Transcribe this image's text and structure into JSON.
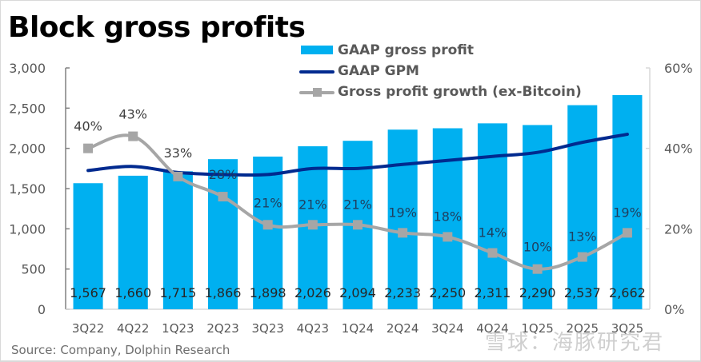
{
  "chart_data": {
    "type": "bar",
    "title": "Block gross profits",
    "source": "Source: Company, Dolphin Research",
    "categories": [
      "3Q22",
      "4Q22",
      "1Q23",
      "2Q23",
      "3Q23",
      "4Q23",
      "1Q24",
      "2Q24",
      "3Q24",
      "4Q24",
      "1Q25",
      "2Q25",
      "3Q25"
    ],
    "series": [
      {
        "name": "GAAP gross profit",
        "type": "bar",
        "axis": "left",
        "color": "#00b0f0",
        "values": [
          1567,
          1660,
          1715,
          1866,
          1898,
          2026,
          2094,
          2233,
          2250,
          2311,
          2290,
          2537,
          2662
        ],
        "labels": [
          "1,567",
          "1,660",
          "1,715",
          "1,866",
          "1,898",
          "2,026",
          "2,094",
          "2,233",
          "2,250",
          "2,311",
          "2,290",
          "2,537",
          "2,662"
        ]
      },
      {
        "name": "GAAP GPM",
        "type": "line",
        "axis": "right",
        "color": "#002a8f",
        "values": [
          34.5,
          35.5,
          34.0,
          33.5,
          33.5,
          35.0,
          35.0,
          36.0,
          37.0,
          38.0,
          39.0,
          41.5,
          43.5
        ]
      },
      {
        "name": "Gross profit growth  (ex-Bitcoin)",
        "type": "line",
        "axis": "right",
        "color": "#a6a6a6",
        "marker": "square",
        "values": [
          40,
          43,
          33,
          28,
          21,
          21,
          21,
          19,
          18,
          14,
          10,
          13,
          19
        ],
        "labels": [
          "40%",
          "43%",
          "33%",
          "28%",
          "21%",
          "21%",
          "21%",
          "19%",
          "18%",
          "14%",
          "10%",
          "13%",
          "19%"
        ]
      }
    ],
    "yaxis_left": {
      "min": 0,
      "max": 3000,
      "ticks": [
        0,
        500,
        1000,
        1500,
        2000,
        2500,
        3000
      ],
      "tick_labels": [
        "0",
        "500",
        "1,000",
        "1,500",
        "2,000",
        "2,500",
        "3,000"
      ]
    },
    "yaxis_right": {
      "min": 0,
      "max": 60,
      "ticks": [
        0,
        20,
        40,
        60
      ],
      "tick_labels": [
        "0%",
        "20%",
        "40%",
        "60%"
      ]
    },
    "grid": false,
    "legend_position": "top-center"
  },
  "watermark": "雪球：海豚研究君"
}
